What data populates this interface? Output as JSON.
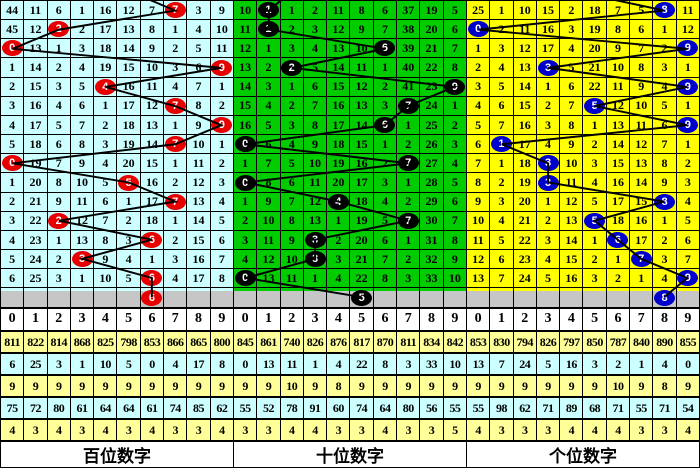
{
  "colors": {
    "hundreds_bg": "#ccffff",
    "tens_bg": "#00cc00",
    "units_bg": "#ffff00",
    "hundreds_circle": "#e80000",
    "tens_circle": "#000000",
    "units_circle": "#0000cc",
    "prediction_row_gray": "#c6c6c6",
    "stats_yellow": "#ffff99",
    "stats_cyan": "#ccffff",
    "line": "#000000"
  },
  "chart_data": {
    "type": "table",
    "description": "3-digit lottery trend chart: per-position miss-count grid with drawn digit circled each row",
    "drawn_sequences": {
      "hundreds": [
        7,
        2,
        0,
        9,
        4,
        7,
        9,
        7,
        0,
        5,
        7,
        2,
        6,
        3,
        6
      ],
      "tens": [
        1,
        1,
        6,
        2,
        9,
        7,
        6,
        0,
        7,
        0,
        4,
        7,
        3,
        3,
        0
      ],
      "units": [
        8,
        0,
        9,
        3,
        9,
        5,
        9,
        1,
        3,
        3,
        8,
        5,
        6,
        7,
        9
      ]
    },
    "predictions": {
      "hundreds": 6,
      "tens": 5,
      "units": 8
    }
  },
  "panels": [
    {
      "label": "百位数字",
      "bg": "#ccffff",
      "circle_color": "#e80000",
      "header": [
        "0",
        "1",
        "2",
        "3",
        "4",
        "5",
        "6",
        "7",
        "8",
        "9"
      ],
      "rows": [
        {
          "cells": [
            "44",
            "11",
            "6",
            "1",
            "16",
            "12",
            "7",
            "7",
            "3",
            "9"
          ],
          "hit": 7
        },
        {
          "cells": [
            "45",
            "12",
            "2",
            "2",
            "17",
            "13",
            "8",
            "1",
            "4",
            "10"
          ],
          "hit": 2
        },
        {
          "cells": [
            "0",
            "13",
            "1",
            "3",
            "18",
            "14",
            "9",
            "2",
            "5",
            "11"
          ],
          "hit": 0
        },
        {
          "cells": [
            "1",
            "14",
            "2",
            "4",
            "19",
            "15",
            "10",
            "3",
            "6",
            "9"
          ],
          "hit": 9
        },
        {
          "cells": [
            "2",
            "15",
            "3",
            "5",
            "4",
            "16",
            "11",
            "4",
            "7",
            "1"
          ],
          "hit": 4
        },
        {
          "cells": [
            "3",
            "16",
            "4",
            "6",
            "1",
            "17",
            "12",
            "7",
            "8",
            "2"
          ],
          "hit": 7
        },
        {
          "cells": [
            "4",
            "17",
            "5",
            "7",
            "2",
            "18",
            "13",
            "1",
            "9",
            "9"
          ],
          "hit": 9
        },
        {
          "cells": [
            "5",
            "18",
            "6",
            "8",
            "3",
            "19",
            "14",
            "7",
            "10",
            "1"
          ],
          "hit": 7
        },
        {
          "cells": [
            "0",
            "19",
            "7",
            "9",
            "4",
            "20",
            "15",
            "1",
            "11",
            "2"
          ],
          "hit": 0
        },
        {
          "cells": [
            "1",
            "20",
            "8",
            "10",
            "5",
            "5",
            "16",
            "2",
            "12",
            "3"
          ],
          "hit": 5
        },
        {
          "cells": [
            "2",
            "21",
            "9",
            "11",
            "6",
            "1",
            "17",
            "7",
            "13",
            "4"
          ],
          "hit": 7
        },
        {
          "cells": [
            "3",
            "22",
            "2",
            "12",
            "7",
            "2",
            "18",
            "1",
            "14",
            "5"
          ],
          "hit": 2
        },
        {
          "cells": [
            "4",
            "23",
            "1",
            "13",
            "8",
            "3",
            "6",
            "2",
            "15",
            "6"
          ],
          "hit": 6
        },
        {
          "cells": [
            "5",
            "24",
            "2",
            "3",
            "9",
            "4",
            "1",
            "3",
            "16",
            "7"
          ],
          "hit": 3
        },
        {
          "cells": [
            "6",
            "25",
            "3",
            "1",
            "10",
            "5",
            "6",
            "4",
            "17",
            "8"
          ],
          "hit": 6
        }
      ],
      "prediction": 6,
      "stats": [
        [
          "811",
          "822",
          "814",
          "868",
          "825",
          "798",
          "853",
          "866",
          "865",
          "800"
        ],
        [
          "6",
          "25",
          "3",
          "1",
          "10",
          "5",
          "0",
          "4",
          "17",
          "8"
        ],
        [
          "9",
          "9",
          "9",
          "9",
          "9",
          "9",
          "9",
          "9",
          "9",
          "9"
        ],
        [
          "75",
          "72",
          "80",
          "61",
          "64",
          "64",
          "61",
          "74",
          "85",
          "62"
        ],
        [
          "4",
          "3",
          "4",
          "3",
          "4",
          "3",
          "4",
          "3",
          "3",
          "4"
        ]
      ]
    },
    {
      "label": "十位数字",
      "bg": "#00cc00",
      "circle_color": "#000000",
      "header": [
        "0",
        "1",
        "2",
        "3",
        "4",
        "5",
        "6",
        "7",
        "8",
        "9"
      ],
      "rows": [
        {
          "cells": [
            "10",
            "1",
            "1",
            "2",
            "11",
            "8",
            "6",
            "37",
            "19",
            "5"
          ],
          "hit": 1
        },
        {
          "cells": [
            "11",
            "1",
            "2",
            "3",
            "12",
            "9",
            "7",
            "38",
            "20",
            "6"
          ],
          "hit": 1
        },
        {
          "cells": [
            "12",
            "1",
            "3",
            "4",
            "13",
            "10",
            "6",
            "39",
            "21",
            "7"
          ],
          "hit": 6
        },
        {
          "cells": [
            "13",
            "2",
            "2",
            "5",
            "14",
            "11",
            "1",
            "40",
            "22",
            "8"
          ],
          "hit": 2
        },
        {
          "cells": [
            "14",
            "3",
            "1",
            "6",
            "15",
            "12",
            "2",
            "41",
            "23",
            "9"
          ],
          "hit": 9
        },
        {
          "cells": [
            "15",
            "4",
            "2",
            "7",
            "16",
            "13",
            "3",
            "7",
            "24",
            "1"
          ],
          "hit": 7
        },
        {
          "cells": [
            "16",
            "5",
            "3",
            "8",
            "17",
            "14",
            "6",
            "1",
            "25",
            "2"
          ],
          "hit": 6
        },
        {
          "cells": [
            "0",
            "6",
            "4",
            "9",
            "18",
            "15",
            "1",
            "2",
            "26",
            "3"
          ],
          "hit": 0
        },
        {
          "cells": [
            "1",
            "7",
            "5",
            "10",
            "19",
            "16",
            "2",
            "7",
            "27",
            "4"
          ],
          "hit": 7
        },
        {
          "cells": [
            "0",
            "8",
            "6",
            "11",
            "20",
            "17",
            "3",
            "1",
            "28",
            "5"
          ],
          "hit": 0
        },
        {
          "cells": [
            "1",
            "9",
            "7",
            "12",
            "4",
            "18",
            "4",
            "2",
            "29",
            "6"
          ],
          "hit": 4
        },
        {
          "cells": [
            "2",
            "10",
            "8",
            "13",
            "1",
            "19",
            "5",
            "7",
            "30",
            "7"
          ],
          "hit": 7
        },
        {
          "cells": [
            "3",
            "11",
            "9",
            "3",
            "2",
            "20",
            "6",
            "1",
            "31",
            "8"
          ],
          "hit": 3
        },
        {
          "cells": [
            "4",
            "12",
            "10",
            "3",
            "3",
            "21",
            "7",
            "2",
            "32",
            "9"
          ],
          "hit": 3
        },
        {
          "cells": [
            "0",
            "13",
            "11",
            "1",
            "4",
            "22",
            "8",
            "3",
            "33",
            "10"
          ],
          "hit": 0
        }
      ],
      "prediction": 5,
      "stats": [
        [
          "845",
          "861",
          "740",
          "826",
          "876",
          "817",
          "870",
          "811",
          "834",
          "842"
        ],
        [
          "0",
          "13",
          "11",
          "1",
          "4",
          "22",
          "8",
          "3",
          "33",
          "10"
        ],
        [
          "9",
          "9",
          "10",
          "9",
          "8",
          "9",
          "9",
          "9",
          "9",
          "9"
        ],
        [
          "55",
          "52",
          "78",
          "91",
          "60",
          "74",
          "64",
          "80",
          "56",
          "55"
        ],
        [
          "3",
          "3",
          "4",
          "4",
          "3",
          "3",
          "4",
          "3",
          "3",
          "5"
        ]
      ]
    },
    {
      "label": "个位数字",
      "bg": "#ffff00",
      "circle_color": "#0000cc",
      "header": [
        "0",
        "1",
        "2",
        "3",
        "4",
        "5",
        "6",
        "7",
        "8",
        "9"
      ],
      "rows": [
        {
          "cells": [
            "25",
            "1",
            "10",
            "15",
            "2",
            "18",
            "7",
            "5",
            "8",
            "11"
          ],
          "hit": 8
        },
        {
          "cells": [
            "0",
            "2",
            "11",
            "16",
            "3",
            "19",
            "8",
            "6",
            "1",
            "12"
          ],
          "hit": 0
        },
        {
          "cells": [
            "1",
            "3",
            "12",
            "17",
            "4",
            "20",
            "9",
            "7",
            "2",
            "9"
          ],
          "hit": 9
        },
        {
          "cells": [
            "2",
            "4",
            "13",
            "3",
            "5",
            "21",
            "10",
            "8",
            "3",
            "1"
          ],
          "hit": 3
        },
        {
          "cells": [
            "3",
            "5",
            "14",
            "1",
            "6",
            "22",
            "11",
            "9",
            "4",
            "9"
          ],
          "hit": 9
        },
        {
          "cells": [
            "4",
            "6",
            "15",
            "2",
            "7",
            "5",
            "12",
            "10",
            "5",
            "1"
          ],
          "hit": 5
        },
        {
          "cells": [
            "5",
            "7",
            "16",
            "3",
            "8",
            "1",
            "13",
            "11",
            "6",
            "9"
          ],
          "hit": 9
        },
        {
          "cells": [
            "6",
            "1",
            "17",
            "4",
            "9",
            "2",
            "14",
            "12",
            "7",
            "1"
          ],
          "hit": 1
        },
        {
          "cells": [
            "7",
            "1",
            "18",
            "3",
            "10",
            "3",
            "15",
            "13",
            "8",
            "2"
          ],
          "hit": 3
        },
        {
          "cells": [
            "8",
            "2",
            "19",
            "3",
            "11",
            "4",
            "16",
            "14",
            "9",
            "3"
          ],
          "hit": 3
        },
        {
          "cells": [
            "9",
            "3",
            "20",
            "1",
            "12",
            "5",
            "17",
            "15",
            "8",
            "4"
          ],
          "hit": 8
        },
        {
          "cells": [
            "10",
            "4",
            "21",
            "2",
            "13",
            "5",
            "18",
            "16",
            "1",
            "5"
          ],
          "hit": 5
        },
        {
          "cells": [
            "11",
            "5",
            "22",
            "3",
            "14",
            "1",
            "6",
            "17",
            "2",
            "6"
          ],
          "hit": 6
        },
        {
          "cells": [
            "12",
            "6",
            "23",
            "4",
            "15",
            "2",
            "1",
            "7",
            "3",
            "7"
          ],
          "hit": 7
        },
        {
          "cells": [
            "13",
            "7",
            "24",
            "5",
            "16",
            "3",
            "2",
            "1",
            "4",
            "9"
          ],
          "hit": 9
        }
      ],
      "prediction": 8,
      "stats": [
        [
          "853",
          "830",
          "794",
          "826",
          "797",
          "850",
          "787",
          "840",
          "890",
          "855"
        ],
        [
          "13",
          "7",
          "24",
          "5",
          "16",
          "3",
          "2",
          "1",
          "4",
          "0"
        ],
        [
          "9",
          "9",
          "9",
          "9",
          "9",
          "9",
          "10",
          "9",
          "8",
          "9"
        ],
        [
          "55",
          "98",
          "62",
          "71",
          "89",
          "68",
          "71",
          "55",
          "71",
          "54"
        ],
        [
          "4",
          "3",
          "3",
          "3",
          "4",
          "4",
          "4",
          "3",
          "3",
          "4"
        ]
      ]
    }
  ]
}
